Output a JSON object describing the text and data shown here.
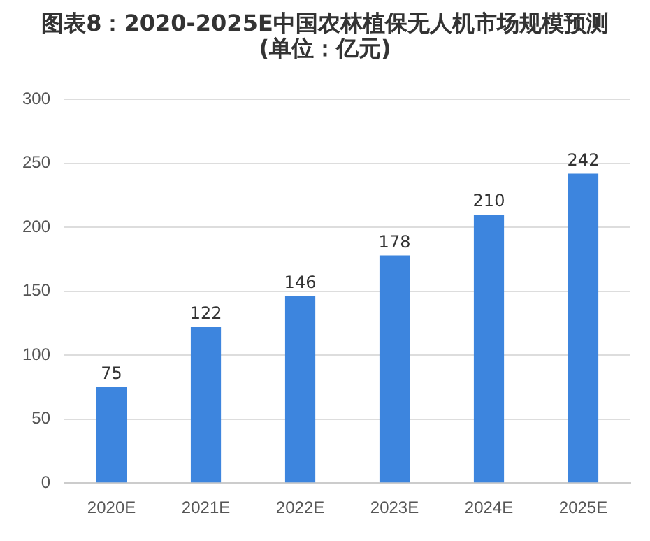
{
  "chart_data": {
    "type": "bar",
    "title": "图表8：2020-2025E中国农林植保无人机市场规模预测(单位：亿元)",
    "categories": [
      "2020E",
      "2021E",
      "2022E",
      "2023E",
      "2024E",
      "2025E"
    ],
    "values": [
      75,
      122,
      146,
      178,
      210,
      242
    ],
    "color": "#3d85de",
    "ylim": [
      0,
      300
    ],
    "yticks": [
      0,
      50,
      100,
      150,
      200,
      250,
      300
    ],
    "grid": "y",
    "data_labels": true
  }
}
